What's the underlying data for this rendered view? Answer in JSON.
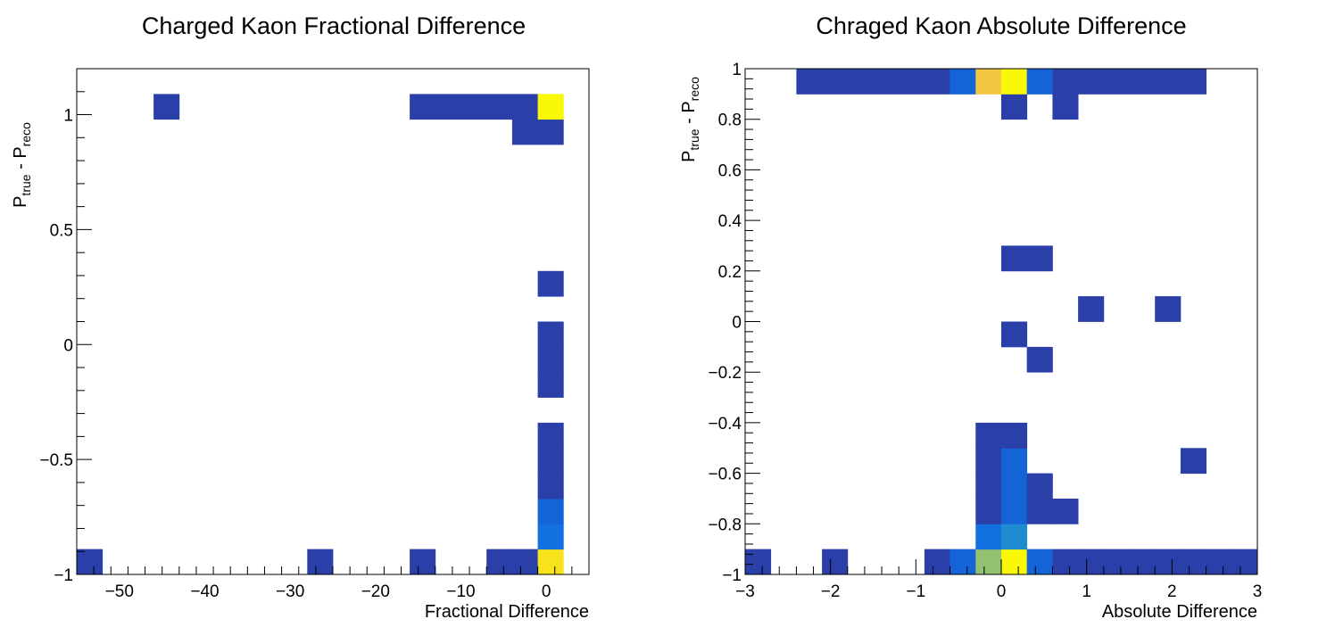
{
  "chart_data": [
    {
      "type": "heatmap",
      "title": "Charged Kaon Fractional Difference",
      "xlabel": "Fractional Difference",
      "ylabel": {
        "base": "P",
        "sub1": "true",
        "op": " - ",
        "base2": "P",
        "sub2": "reco"
      },
      "xlim": [
        -55,
        5
      ],
      "ylim": [
        -1,
        1.2
      ],
      "x_bin_width": 3,
      "y_bin_width": 0.11,
      "x_ticks": [
        -50,
        -40,
        -30,
        -20,
        -10,
        0
      ],
      "x_tick_labels": [
        "−50",
        "−40",
        "−30",
        "−20",
        "−10",
        "0"
      ],
      "y_ticks": [
        -1,
        -0.5,
        0,
        0.5,
        1
      ],
      "y_tick_labels": [
        "−1",
        "−0.5",
        "0",
        "0.5",
        "1"
      ],
      "grid": false,
      "legend": "none",
      "cells": [
        {
          "x": -55,
          "y": -1.0,
          "level": 1
        },
        {
          "x": -28,
          "y": -1.0,
          "level": 1
        },
        {
          "x": -16,
          "y": -1.0,
          "level": 1
        },
        {
          "x": -7,
          "y": -1.0,
          "level": 1
        },
        {
          "x": -4,
          "y": -1.0,
          "level": 1
        },
        {
          "x": -1,
          "y": -1.0,
          "level": 8
        },
        {
          "x": -1,
          "y": -0.89,
          "level": 3
        },
        {
          "x": -1,
          "y": -0.78,
          "level": 2
        },
        {
          "x": -1,
          "y": -0.67,
          "level": 1
        },
        {
          "x": -1,
          "y": -0.56,
          "level": 1
        },
        {
          "x": -1,
          "y": -0.45,
          "level": 1
        },
        {
          "x": -1,
          "y": -0.23,
          "level": 1
        },
        {
          "x": -1,
          "y": -0.12,
          "level": 1
        },
        {
          "x": -1,
          "y": -0.01,
          "level": 1
        },
        {
          "x": -1,
          "y": 0.21,
          "level": 1
        },
        {
          "x": -4,
          "y": 0.87,
          "level": 1
        },
        {
          "x": -1,
          "y": 0.87,
          "level": 1
        },
        {
          "x": -46,
          "y": 0.98,
          "level": 1
        },
        {
          "x": -16,
          "y": 0.98,
          "level": 1
        },
        {
          "x": -13,
          "y": 0.98,
          "level": 1
        },
        {
          "x": -10,
          "y": 0.98,
          "level": 1
        },
        {
          "x": -7,
          "y": 0.98,
          "level": 1
        },
        {
          "x": -4,
          "y": 0.98,
          "level": 1
        },
        {
          "x": -1,
          "y": 0.98,
          "level": 9
        }
      ]
    },
    {
      "type": "heatmap",
      "title": "Chraged Kaon Absolute Difference",
      "xlabel": "Absolute Difference",
      "ylabel": {
        "base": "P",
        "sub1": "true",
        "op": " - ",
        "base2": "P",
        "sub2": "reco"
      },
      "xlim": [
        -3,
        3
      ],
      "ylim": [
        -1,
        1
      ],
      "x_bin_width": 0.3,
      "y_bin_width": 0.1,
      "x_ticks": [
        -3,
        -2,
        -1,
        0,
        1,
        2,
        3
      ],
      "x_tick_labels": [
        "−3",
        "−2",
        "−1",
        "0",
        "1",
        "2",
        "3"
      ],
      "y_ticks": [
        -1,
        -0.8,
        -0.6,
        -0.4,
        -0.2,
        0,
        0.2,
        0.4,
        0.6,
        0.8,
        1
      ],
      "y_tick_labels": [
        "−1",
        "−0.8",
        "−0.6",
        "−0.4",
        "−0.2",
        "0",
        "0.2",
        "0.4",
        "0.6",
        "0.8",
        "1"
      ],
      "grid": false,
      "legend": "none",
      "cells": [
        {
          "x": -3.0,
          "y": -1.0,
          "level": 1
        },
        {
          "x": -2.1,
          "y": -1.0,
          "level": 1
        },
        {
          "x": -0.9,
          "y": -1.0,
          "level": 1
        },
        {
          "x": -0.6,
          "y": -1.0,
          "level": 2
        },
        {
          "x": -0.3,
          "y": -1.0,
          "level": 6
        },
        {
          "x": 0.0,
          "y": -1.0,
          "level": 9
        },
        {
          "x": 0.3,
          "y": -1.0,
          "level": 2
        },
        {
          "x": 0.6,
          "y": -1.0,
          "level": 1
        },
        {
          "x": 0.9,
          "y": -1.0,
          "level": 1
        },
        {
          "x": 1.2,
          "y": -1.0,
          "level": 1
        },
        {
          "x": 1.5,
          "y": -1.0,
          "level": 1
        },
        {
          "x": 1.8,
          "y": -1.0,
          "level": 1
        },
        {
          "x": 2.1,
          "y": -1.0,
          "level": 1
        },
        {
          "x": 2.4,
          "y": -1.0,
          "level": 1
        },
        {
          "x": 2.7,
          "y": -1.0,
          "level": 1
        },
        {
          "x": -0.3,
          "y": -0.9,
          "level": 3
        },
        {
          "x": 0.0,
          "y": -0.9,
          "level": 4
        },
        {
          "x": -0.3,
          "y": -0.8,
          "level": 1
        },
        {
          "x": 0.0,
          "y": -0.8,
          "level": 2
        },
        {
          "x": 0.3,
          "y": -0.8,
          "level": 1
        },
        {
          "x": 0.6,
          "y": -0.8,
          "level": 1
        },
        {
          "x": -0.3,
          "y": -0.7,
          "level": 1
        },
        {
          "x": 0.0,
          "y": -0.7,
          "level": 2
        },
        {
          "x": 0.3,
          "y": -0.7,
          "level": 1
        },
        {
          "x": -0.3,
          "y": -0.6,
          "level": 1
        },
        {
          "x": 0.0,
          "y": -0.6,
          "level": 2
        },
        {
          "x": 2.1,
          "y": -0.6,
          "level": 1
        },
        {
          "x": -0.3,
          "y": -0.5,
          "level": 1
        },
        {
          "x": 0.0,
          "y": -0.5,
          "level": 1
        },
        {
          "x": 0.3,
          "y": -0.2,
          "level": 1
        },
        {
          "x": 0.0,
          "y": -0.1,
          "level": 1
        },
        {
          "x": 0.9,
          "y": 0.0,
          "level": 1
        },
        {
          "x": 1.8,
          "y": 0.0,
          "level": 1
        },
        {
          "x": 0.0,
          "y": 0.2,
          "level": 1
        },
        {
          "x": 0.3,
          "y": 0.2,
          "level": 1
        },
        {
          "x": 0.0,
          "y": 0.8,
          "level": 1
        },
        {
          "x": 0.6,
          "y": 0.8,
          "level": 1
        },
        {
          "x": -2.4,
          "y": 0.9,
          "level": 1
        },
        {
          "x": -2.1,
          "y": 0.9,
          "level": 1
        },
        {
          "x": -1.8,
          "y": 0.9,
          "level": 1
        },
        {
          "x": -1.5,
          "y": 0.9,
          "level": 1
        },
        {
          "x": -1.2,
          "y": 0.9,
          "level": 1
        },
        {
          "x": -0.9,
          "y": 0.9,
          "level": 1
        },
        {
          "x": -0.6,
          "y": 0.9,
          "level": 2
        },
        {
          "x": -0.3,
          "y": 0.9,
          "level": 7
        },
        {
          "x": 0.0,
          "y": 0.9,
          "level": 9
        },
        {
          "x": 0.3,
          "y": 0.9,
          "level": 2
        },
        {
          "x": 0.6,
          "y": 0.9,
          "level": 1
        },
        {
          "x": 0.9,
          "y": 0.9,
          "level": 1
        },
        {
          "x": 1.2,
          "y": 0.9,
          "level": 1
        },
        {
          "x": 1.5,
          "y": 0.9,
          "level": 1
        },
        {
          "x": 1.8,
          "y": 0.9,
          "level": 1
        },
        {
          "x": 2.1,
          "y": 0.9,
          "level": 1
        }
      ]
    }
  ],
  "palette": {
    "1": "#2a3fa8",
    "2": "#1464d8",
    "3": "#1270e0",
    "4": "#1e8ad0",
    "5": "#5ab0a0",
    "6": "#94c072",
    "7": "#f2c640",
    "8": "#f8e21c",
    "9": "#f8f808"
  }
}
